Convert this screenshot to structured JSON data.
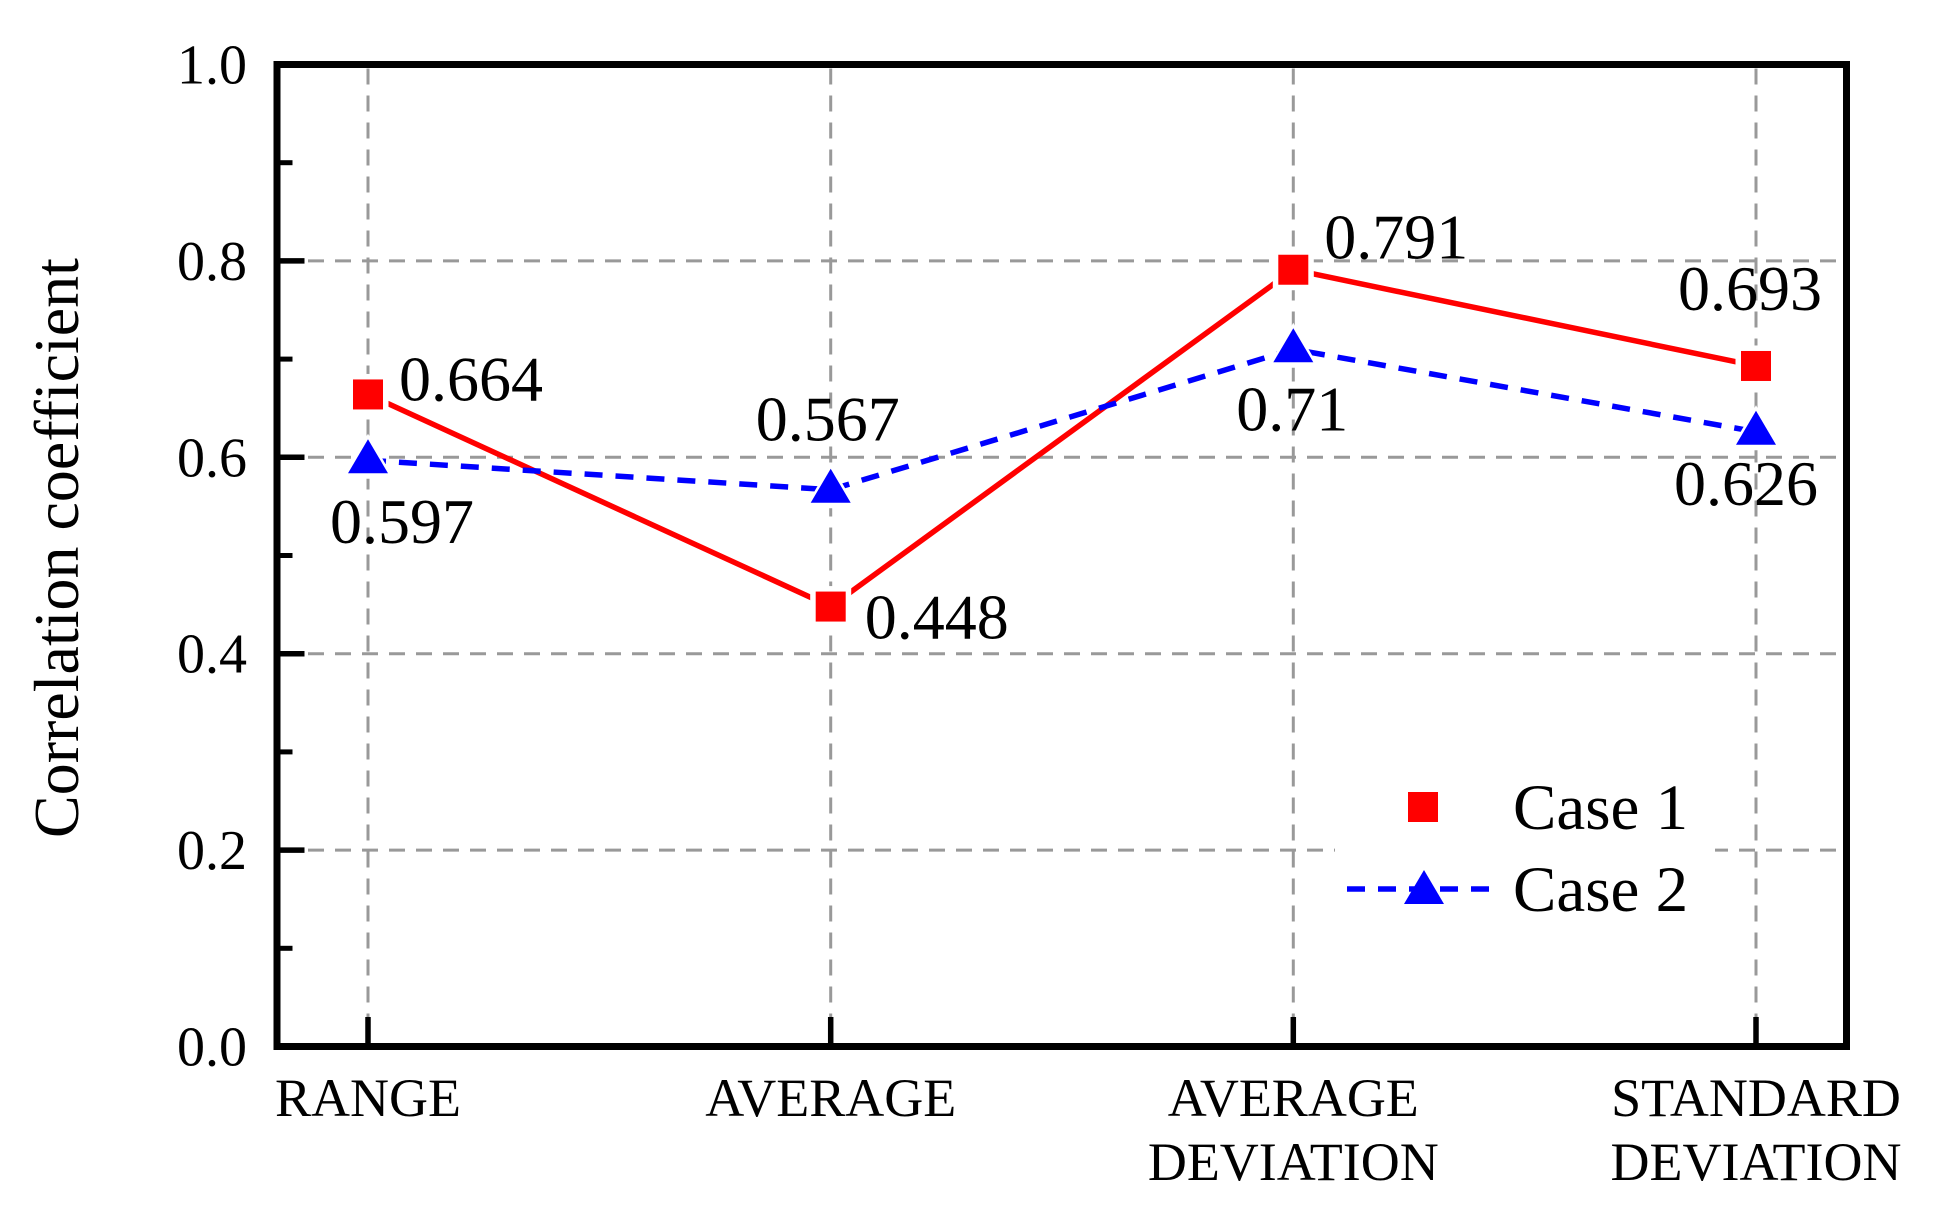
{
  "chart_data": {
    "type": "line",
    "title": "",
    "xlabel": "",
    "ylabel": "Correlation coefficient",
    "ylim": [
      0.0,
      1.0
    ],
    "y_tick_labels": [
      "1.0",
      "0.8",
      "0.6",
      "0.4",
      "0.2",
      "0.0"
    ],
    "y_major_ticks": [
      1.0,
      0.8,
      0.6,
      0.4,
      0.2,
      0.0
    ],
    "y_minor_ticks": [
      0.1,
      0.3,
      0.5,
      0.7,
      0.9
    ],
    "grid": "dashed",
    "grid_color": "#999999",
    "axis_color": "#000000",
    "background": "#ffffff",
    "categories": [
      "RANGE",
      "AVERAGE",
      "AVERAGE DEVIATION",
      "STANDARD DEVIATION"
    ],
    "category_lines": [
      [
        "RANGE"
      ],
      [
        "AVERAGE"
      ],
      [
        "AVERAGE",
        "DEVIATION"
      ],
      [
        "STANDARD",
        "DEVIATION"
      ]
    ],
    "legend": {
      "position": "inside-lower-right"
    },
    "series": [
      {
        "name": "Case 1",
        "color": "#ff0000",
        "line_style": "solid",
        "marker": "square",
        "values": [
          0.664,
          0.448,
          0.791,
          0.693
        ],
        "point_labels": [
          "0.664",
          "0.448",
          "0.791",
          "0.693"
        ]
      },
      {
        "name": "Case 2",
        "color": "#0000ff",
        "line_style": "dashed",
        "marker": "triangle-up",
        "values": [
          0.597,
          0.567,
          0.71,
          0.626
        ],
        "point_labels": [
          "0.597",
          "0.567",
          "0.71",
          "0.626"
        ]
      }
    ]
  }
}
